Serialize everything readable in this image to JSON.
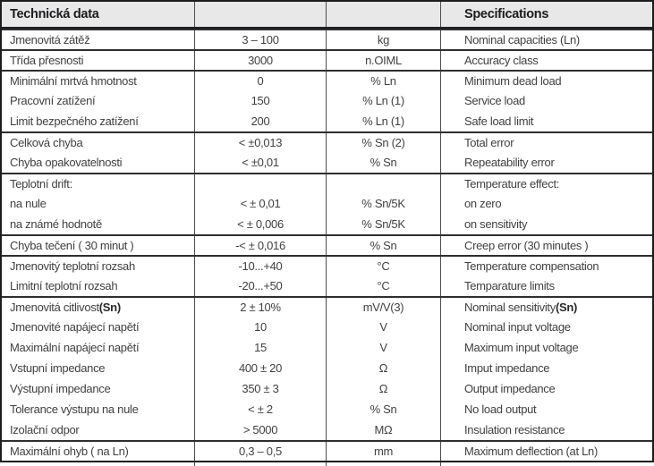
{
  "colors": {
    "header_bg": "#e8e8e9",
    "text": "#414042",
    "outer_border": "#1d1d1f",
    "group_line": "#2e2e30",
    "column_line": "#4e4e50"
  },
  "table": {
    "header": {
      "czech": "Technická data",
      "value": "",
      "unit": "",
      "english": "Specifications"
    },
    "rows": [
      {
        "label": "Jmenovitá zátěž",
        "value": "3 – 100",
        "unit": "kg",
        "english": "Nominal capacities (Ln)",
        "group_start": true
      },
      {
        "label": "Třída přesnosti",
        "value": "3000",
        "unit": "n.OIML",
        "english": "Accuracy class",
        "group_start": true
      },
      {
        "label": "Minimální mrtvá hmotnost",
        "value": "0",
        "unit": "% Ln",
        "english": "Minimum dead load",
        "group_start": true
      },
      {
        "label": "Pracovní zatížení",
        "value": "150",
        "unit": "% Ln (1)",
        "english": "Service load",
        "group_start": false
      },
      {
        "label": "Limit bezpečného zatížení",
        "value": "200",
        "unit": "% Ln (1)",
        "english": "Safe load limit",
        "group_start": false
      },
      {
        "label": "Celková chyba",
        "value": "< ±0,013",
        "unit": "% Sn (2)",
        "english": "Total error",
        "group_start": true
      },
      {
        "label": "Chyba opakovatelnosti",
        "value": "< ±0,01",
        "unit": "% Sn",
        "english": "Repeatability error",
        "group_start": false
      },
      {
        "label": "Teplotní drift:",
        "value": "",
        "unit": "",
        "english": "Temperature effect:",
        "group_start": true
      },
      {
        "label": "na nule",
        "value": "< ± 0,01",
        "unit": "% Sn/5K",
        "english": "on zero",
        "group_start": false
      },
      {
        "label": "na známé hodnotě",
        "value": "< ± 0,006",
        "unit": "% Sn/5K",
        "english": "on sensitivity",
        "group_start": false
      },
      {
        "label": "Chyba tečení ( 30 minut )",
        "value": "-< ± 0,016",
        "unit": "% Sn",
        "english": "Creep error (30 minutes )",
        "group_start": true
      },
      {
        "label": "Jmenovitý teplotní rozsah",
        "value": "-10...+40",
        "unit": "°C",
        "english": "Temperature compensation",
        "group_start": true
      },
      {
        "label": "Limitní teplotní rozsah",
        "value": "-20...+50",
        "unit": "°C",
        "english": "Temparature limits",
        "group_start": false
      },
      {
        "label": "Jmenovitá citlivost ",
        "label_bold": "(Sn)",
        "value": "2 ± 10%",
        "unit": "mV/V(3)",
        "english": "Nominal sensitivity ",
        "english_bold": "(Sn)",
        "group_start": true
      },
      {
        "label": "Jmenovité napájecí napětí",
        "value": "10",
        "unit": "V",
        "english": "Nominal input voltage",
        "group_start": false
      },
      {
        "label": "Maximální napájecí napětí",
        "value": "15",
        "unit": "V",
        "english": "Maximum input voltage",
        "group_start": false
      },
      {
        "label": "Vstupní impedance",
        "value": "400 ± 20",
        "unit": "Ω",
        "english": "Imput impedance",
        "group_start": false
      },
      {
        "label": "Výstupní impedance",
        "value": "350 ± 3",
        "unit": "Ω",
        "english": "Output impedance",
        "group_start": false
      },
      {
        "label": "Tolerance výstupu na nule",
        "value": "< ± 2",
        "unit": "% Sn",
        "english": "No load output",
        "group_start": false
      },
      {
        "label": "Izolační odpor",
        "value": "> 5000",
        "unit": "MΩ",
        "english": "Insulation resistance",
        "group_start": false
      },
      {
        "label": "Maximální ohyb ( na Ln)",
        "value": "0,3 – 0,5",
        "unit": "mm",
        "english": "Maximum deflection (at Ln)",
        "group_start": true
      }
    ]
  }
}
